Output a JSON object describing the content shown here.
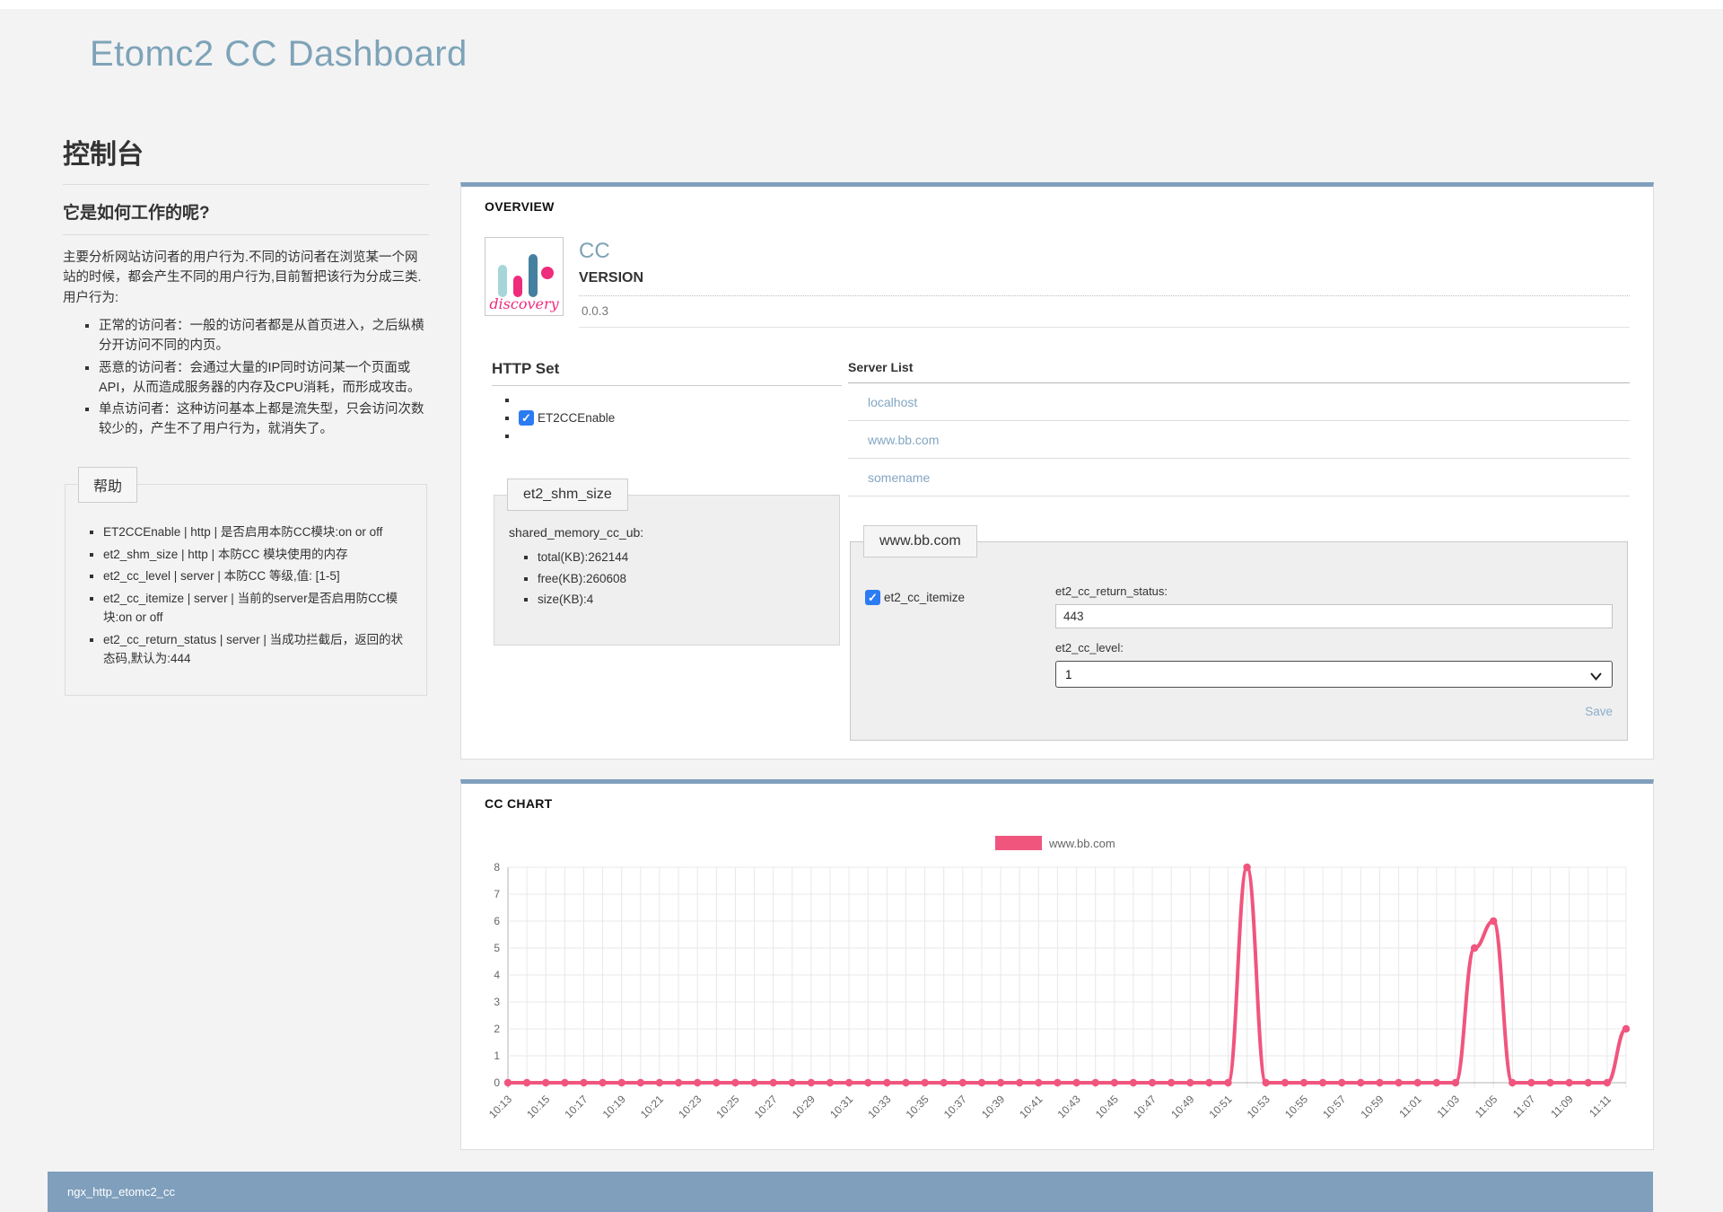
{
  "page": {
    "title": "Etomc2 CC Dashboard",
    "footer_text": "ngx_http_etomc2_cc"
  },
  "colors": {
    "accent_bluegray": "#7f9fbc",
    "heading_bluegray": "#7da2b5",
    "link_bluegray": "#83a6c4",
    "series_pink": "#f0557e",
    "checkbox_blue": "#2b7bf3",
    "logo_lightblue": "#a7d6d9",
    "logo_pink": "#ee2c7b",
    "logo_teal": "#44809f"
  },
  "sidebar": {
    "console_title": "控制台",
    "how_title": "它是如何工作的呢?",
    "intro": "主要分析网站访问者的用户行为.不同的访问者在浏览某一个网站的时候，都会产生不同的用户行为,目前暂把该行为分成三类. 用户行为:",
    "visitor_types": [
      "正常的访问者：一般的访问者都是从首页进入，之后纵横分开访问不同的内页。",
      "恶意的访问者：会通过大量的IP同时访问某一个页面或API，从而造成服务器的内存及CPU消耗，而形成攻击。",
      "单点访问者：这种访问基本上都是流失型，只会访问次数较少的，产生不了用户行为，就消失了。"
    ],
    "help": {
      "legend": "帮助",
      "items": [
        "ET2CCEnable | http | 是否启用本防CC模块:on or off",
        "et2_shm_size | http | 本防CC 模块使用的内存",
        "et2_cc_level | server | 本防CC 等级,值: [1-5]",
        "et2_cc_itemize | server | 当前的server是否启用防CC模块:on or off",
        "et2_cc_return_status | server | 当成功拦截后，返回的状态码,默认为:444"
      ]
    }
  },
  "overview": {
    "panel_title": "OVERVIEW",
    "logo": {
      "word": "discovery"
    },
    "app_name": "CC",
    "version_label": "VERSION",
    "version_value": "0.0.3",
    "http_set": {
      "title": "HTTP Set",
      "checkbox_label": "ET2CCEnable",
      "checked": true
    },
    "shm": {
      "legend": "et2_shm_size",
      "heading": "shared_memory_cc_ub:",
      "items": [
        "total(KB):262144",
        "free(KB):260608",
        "size(KB):4"
      ]
    },
    "server_list": {
      "title": "Server List",
      "servers": [
        "localhost",
        "www.bb.com",
        "somename"
      ]
    },
    "server_form": {
      "legend": "www.bb.com",
      "itemize_label": "et2_cc_itemize",
      "itemize_checked": true,
      "return_status_label": "et2_cc_return_status:",
      "return_status_value": "443",
      "level_label": "et2_cc_level:",
      "level_value": "1",
      "save_label": "Save"
    }
  },
  "chart_panel": {
    "title": "CC CHART"
  },
  "chart_data": {
    "type": "line",
    "title": "",
    "legend_position": "top-center",
    "grid": true,
    "ylim": [
      0,
      8
    ],
    "yticks": [
      0,
      1,
      2,
      3,
      4,
      5,
      6,
      7,
      8
    ],
    "x_label_every": 2,
    "x": [
      "10:13",
      "10:14",
      "10:15",
      "10:16",
      "10:17",
      "10:18",
      "10:19",
      "10:20",
      "10:21",
      "10:22",
      "10:23",
      "10:24",
      "10:25",
      "10:26",
      "10:27",
      "10:28",
      "10:29",
      "10:30",
      "10:31",
      "10:32",
      "10:33",
      "10:34",
      "10:35",
      "10:36",
      "10:37",
      "10:38",
      "10:39",
      "10:40",
      "10:41",
      "10:42",
      "10:43",
      "10:44",
      "10:45",
      "10:46",
      "10:47",
      "10:48",
      "10:49",
      "10:50",
      "10:51",
      "10:52",
      "10:53",
      "10:54",
      "10:55",
      "10:56",
      "10:57",
      "10:58",
      "10:59",
      "11:00",
      "11:01",
      "11:02",
      "11:03",
      "11:04",
      "11:05",
      "11:06",
      "11:07",
      "11:08",
      "11:09",
      "11:10",
      "11:11",
      "11:12"
    ],
    "series": [
      {
        "name": "www.bb.com",
        "color": "#f0557e",
        "values": [
          0,
          0,
          0,
          0,
          0,
          0,
          0,
          0,
          0,
          0,
          0,
          0,
          0,
          0,
          0,
          0,
          0,
          0,
          0,
          0,
          0,
          0,
          0,
          0,
          0,
          0,
          0,
          0,
          0,
          0,
          0,
          0,
          0,
          0,
          0,
          0,
          0,
          0,
          0,
          8,
          0,
          0,
          0,
          0,
          0,
          0,
          0,
          0,
          0,
          0,
          0,
          5,
          6,
          0,
          0,
          0,
          0,
          0,
          0,
          2
        ]
      }
    ]
  }
}
